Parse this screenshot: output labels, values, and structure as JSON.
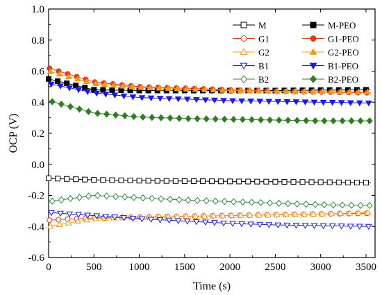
{
  "chart_data": {
    "type": "line",
    "xlabel": "Time (s)",
    "ylabel": "OCP (V)",
    "xlim": [
      0,
      3600
    ],
    "ylim": [
      -0.6,
      1.0
    ],
    "xticks": [
      "0",
      "500",
      "1000",
      "1500",
      "2000",
      "2500",
      "3000",
      "3500"
    ],
    "yticks": [
      "-0.6",
      "-0.4",
      "-0.2",
      "0.0",
      "0.2",
      "0.4",
      "0.6",
      "0.8",
      "1.0"
    ],
    "grid": false,
    "legend": "top-right",
    "x": [
      0,
      500,
      1000,
      1500,
      2000,
      2500,
      3000,
      3550
    ],
    "series": [
      {
        "name": "M",
        "color": "#000000",
        "marker": "square-open",
        "values": [
          -0.09,
          -0.1,
          -0.105,
          -0.108,
          -0.11,
          -0.112,
          -0.115,
          -0.118
        ]
      },
      {
        "name": "G1",
        "color": "#e03a1e",
        "marker": "circle-open",
        "values": [
          -0.36,
          -0.345,
          -0.34,
          -0.335,
          -0.33,
          -0.325,
          -0.32,
          -0.315
        ]
      },
      {
        "name": "G2",
        "color": "#f29b1d",
        "marker": "triangle-up-open",
        "values": [
          -0.4,
          -0.35,
          -0.34,
          -0.335,
          -0.33,
          -0.325,
          -0.32,
          -0.31
        ]
      },
      {
        "name": "B1",
        "color": "#1a1ae6",
        "marker": "triangle-down-open",
        "values": [
          -0.31,
          -0.33,
          -0.35,
          -0.365,
          -0.38,
          -0.39,
          -0.395,
          -0.4
        ]
      },
      {
        "name": "B2",
        "color": "#2e8b2e",
        "marker": "diamond-open",
        "values": [
          -0.24,
          -0.2,
          -0.215,
          -0.23,
          -0.24,
          -0.25,
          -0.26,
          -0.265
        ]
      },
      {
        "name": "M-PEO",
        "color": "#000000",
        "marker": "square-filled",
        "values": [
          0.55,
          0.48,
          0.475,
          0.475,
          0.475,
          0.475,
          0.478,
          0.48
        ]
      },
      {
        "name": "G1-PEO",
        "color": "#e03a1e",
        "marker": "circle-filled",
        "values": [
          0.62,
          0.53,
          0.5,
          0.49,
          0.48,
          0.47,
          0.465,
          0.46
        ]
      },
      {
        "name": "G2-PEO",
        "color": "#f29b1d",
        "marker": "triangle-up-filled",
        "values": [
          0.6,
          0.52,
          0.495,
          0.485,
          0.475,
          0.47,
          0.468,
          0.465
        ]
      },
      {
        "name": "B1-PEO",
        "color": "#1a1ae6",
        "marker": "triangle-down-filled",
        "values": [
          0.52,
          0.46,
          0.43,
          0.42,
          0.41,
          0.405,
          0.4,
          0.395
        ]
      },
      {
        "name": "B2-PEO",
        "color": "#2e7d1e",
        "marker": "diamond-filled",
        "values": [
          0.41,
          0.33,
          0.305,
          0.295,
          0.29,
          0.285,
          0.28,
          0.28
        ]
      }
    ]
  }
}
